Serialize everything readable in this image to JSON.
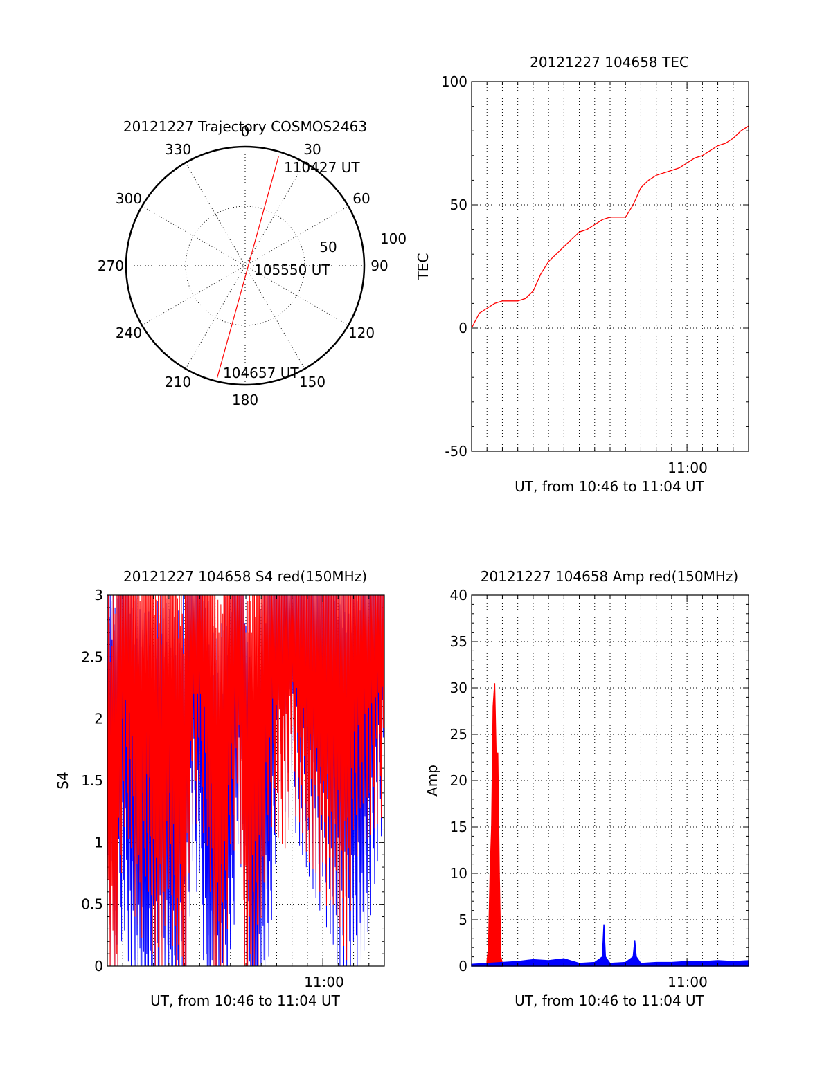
{
  "colors": {
    "red": "#ff0000",
    "blue": "#0000ff",
    "axis": "#000000"
  },
  "chart_data": [
    {
      "type": "polar",
      "title": "20121227 Trajectory COSMOS2463",
      "angle_labels": [
        "0",
        "30",
        "60",
        "90",
        "120",
        "150",
        "180",
        "210",
        "240",
        "270",
        "300",
        "330"
      ],
      "radius_labels": [
        "50",
        "100"
      ],
      "trajectory": {
        "start_label": "104657 UT",
        "mid_label": "105550 UT",
        "end_label": "110427 UT",
        "start_azimuth": 194,
        "start_radius": 97,
        "end_azimuth": 17,
        "end_radius": 96
      }
    },
    {
      "type": "line",
      "title": "20121227 104658 TEC",
      "ylabel": "TEC",
      "xlabel": "UT, from 10:46 to 11:04 UT",
      "xtick_labels": [
        "11:00"
      ],
      "yticks": [
        "-50",
        "0",
        "50",
        "100"
      ],
      "ylim": [
        -50,
        100
      ],
      "grid": true,
      "series": [
        {
          "color": "red",
          "x": [
            0.0,
            0.5,
            1.0,
            1.5,
            2.0,
            2.5,
            3.0,
            3.5,
            4.0,
            4.5,
            5.0,
            5.5,
            6.0,
            6.5,
            7.0,
            7.5,
            8.0,
            8.5,
            9.0,
            9.5,
            10.0,
            10.5,
            11.0,
            11.5,
            12.0,
            12.5,
            13.0,
            13.5,
            14.0,
            14.5,
            15.0,
            15.5,
            16.0,
            16.5,
            17.0,
            17.5,
            18.0
          ],
          "y": [
            0,
            6,
            8,
            10,
            11,
            11,
            11,
            12,
            15,
            22,
            27,
            30,
            33,
            36,
            39,
            40,
            42,
            44,
            45,
            45,
            45,
            50,
            57,
            60,
            62,
            63,
            64,
            65,
            67,
            69,
            70,
            72,
            74,
            75,
            77,
            80,
            82
          ]
        }
      ]
    },
    {
      "type": "line",
      "title": "20121227 104658 S4 red(150MHz)",
      "ylabel": "S4",
      "xlabel": "UT, from 10:46 to 11:04 UT",
      "xtick_labels": [
        "11:00"
      ],
      "yticks": [
        "0",
        "0.5",
        "1",
        "1.5",
        "2",
        "2.5",
        "3"
      ],
      "ylim": [
        0,
        3
      ],
      "grid": true,
      "series": [
        {
          "color": "blue",
          "x": [
            0.0,
            0.5,
            1.0,
            1.5,
            2.0,
            2.5,
            3.0,
            3.5,
            4.0,
            4.5,
            5.0,
            5.5,
            6.0,
            6.5,
            7.0,
            7.5,
            8.0,
            8.5,
            9.0,
            9.5,
            10.0,
            10.5,
            11.0,
            11.5,
            12.0,
            12.5,
            13.0,
            13.5,
            14.0,
            14.5,
            15.0,
            15.5,
            16.0,
            16.5,
            17.0,
            17.5,
            18.0
          ],
          "y": [
            1.5,
            1.4,
            2.0,
            1.5,
            1.1,
            1.05,
            1.1,
            1.2,
            1.1,
            1.0,
            1.3,
            2.5,
            2.0,
            1.2,
            0.8,
            1.0,
            1.5,
            2.8,
            1.4,
            0.3,
            1.2,
            1.8,
            2.7,
            2.9,
            2.8,
            2.6,
            2.4,
            2.2,
            2.0,
            1.9,
            1.6,
            1.5,
            1.5,
            1.7,
            2.0,
            2.5,
            2.9
          ]
        },
        {
          "color": "red",
          "x": [
            0.0,
            0.5,
            1.0,
            1.5,
            2.0,
            2.5,
            3.0,
            3.5,
            4.0,
            4.5,
            5.0,
            5.5,
            6.0,
            6.5,
            7.0,
            7.5,
            8.0,
            8.5,
            9.0,
            9.5,
            10.0,
            10.5,
            11.0,
            11.5,
            12.0,
            12.5,
            13.0,
            13.5,
            14.0,
            14.5,
            15.0,
            15.5,
            16.0,
            16.5,
            17.0,
            17.5,
            18.0
          ],
          "y": [
            1.3,
            1.2,
            2.8,
            2.6,
            1.5,
            2.5,
            1.5,
            1.4,
            2.0,
            1.5,
            1.3,
            2.8,
            2.8,
            2.6,
            1.2,
            1.5,
            2.4,
            2.9,
            1.2,
            1.6,
            1.7,
            2.8,
            2.7,
            2.6,
            2.9,
            2.8,
            2.5,
            2.4,
            2.1,
            2.2,
            2.0,
            1.7,
            2.5,
            2.6,
            2.7,
            2.8,
            2.9
          ]
        }
      ]
    },
    {
      "type": "line",
      "title": "20121227 104658 Amp red(150MHz)",
      "ylabel": "Amp",
      "xlabel": "UT, from 10:46 to 11:04 UT",
      "xtick_labels": [
        "11:00"
      ],
      "yticks": [
        "0",
        "5",
        "10",
        "15",
        "20",
        "25",
        "30",
        "35",
        "40"
      ],
      "ylim": [
        0,
        40
      ],
      "grid": true,
      "series": [
        {
          "color": "red",
          "x": [
            1.0,
            1.1,
            1.2,
            1.3,
            1.4,
            1.5,
            1.6,
            1.7,
            1.8,
            1.9,
            2.0
          ],
          "y": [
            0.5,
            2.0,
            10.0,
            15.0,
            28.0,
            30.5,
            22.0,
            23.0,
            10.0,
            1.0,
            0.3
          ]
        },
        {
          "color": "blue",
          "x": [
            0.0,
            1.0,
            2.0,
            3.0,
            4.0,
            5.0,
            6.0,
            7.0,
            8.0,
            8.5,
            8.6,
            8.7,
            9.0,
            10.0,
            10.5,
            10.6,
            10.7,
            11.0,
            12.0,
            13.0,
            14.0,
            15.0,
            16.0,
            17.0,
            18.0
          ],
          "y": [
            0.2,
            0.3,
            0.4,
            0.5,
            0.7,
            0.6,
            0.8,
            0.3,
            0.4,
            1.0,
            4.5,
            1.0,
            0.3,
            0.4,
            1.0,
            2.8,
            1.0,
            0.3,
            0.4,
            0.4,
            0.5,
            0.5,
            0.6,
            0.5,
            0.6
          ]
        }
      ]
    }
  ]
}
